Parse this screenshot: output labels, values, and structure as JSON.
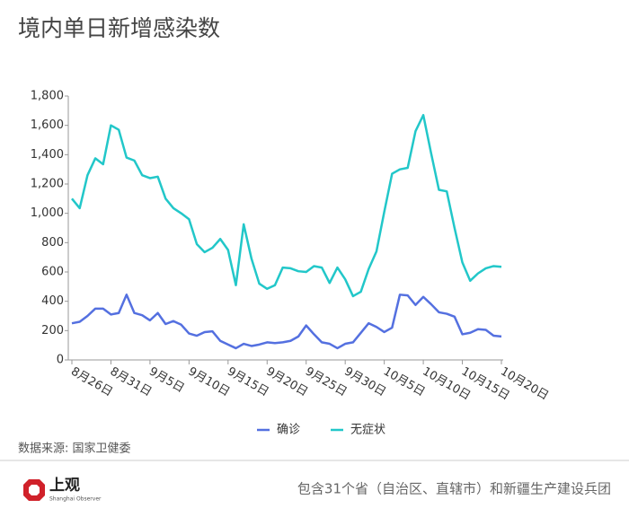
{
  "chart_data": {
    "type": "line",
    "title": "境内单日新增感染数",
    "categories": [
      "8月26日",
      null,
      null,
      null,
      null,
      "8月31日",
      null,
      null,
      null,
      null,
      "9月5日",
      null,
      null,
      null,
      null,
      "9月10日",
      null,
      null,
      null,
      null,
      "9月15日",
      null,
      null,
      null,
      null,
      "9月20日",
      null,
      null,
      null,
      null,
      "9月25日",
      null,
      null,
      null,
      null,
      "9月30日",
      null,
      null,
      null,
      null,
      "10月5日",
      null,
      null,
      null,
      null,
      "10月10日",
      null,
      null,
      null,
      null,
      "10月15日",
      null,
      null,
      null,
      null,
      "10月20日"
    ],
    "series": [
      {
        "name": "确诊",
        "color": "#5470e0",
        "values": [
          250,
          260,
          300,
          350,
          350,
          310,
          320,
          445,
          320,
          305,
          270,
          320,
          245,
          265,
          240,
          180,
          165,
          190,
          195,
          130,
          105,
          80,
          110,
          95,
          105,
          120,
          115,
          120,
          130,
          160,
          235,
          175,
          120,
          110,
          80,
          110,
          120,
          185,
          250,
          225,
          190,
          220,
          445,
          440,
          375,
          430,
          380,
          325,
          315,
          295,
          175,
          185,
          210,
          205,
          165,
          160
        ]
      },
      {
        "name": "无症状",
        "color": "#22c7c9",
        "values": [
          1100,
          1035,
          1260,
          1375,
          1335,
          1600,
          1570,
          1380,
          1360,
          1260,
          1240,
          1250,
          1100,
          1035,
          1000,
          960,
          790,
          735,
          765,
          825,
          750,
          510,
          925,
          690,
          520,
          485,
          510,
          630,
          625,
          605,
          600,
          640,
          630,
          525,
          630,
          550,
          435,
          465,
          620,
          740,
          1010,
          1270,
          1300,
          1310,
          1560,
          1670,
          1410,
          1160,
          1150,
          900,
          665,
          540,
          590,
          625,
          640,
          635
        ]
      }
    ],
    "ylim": [
      0,
      1800
    ],
    "yticks": [
      0,
      200,
      400,
      600,
      800,
      {
        "value": 1000,
        "label": "1,000"
      },
      {
        "value": 1200,
        "label": "1,200"
      },
      {
        "value": 1400,
        "label": "1,400"
      },
      {
        "value": 1600,
        "label": "1,600"
      },
      {
        "value": 1800,
        "label": "1,800"
      }
    ],
    "grid": false,
    "legend": "bottom",
    "source": "数据来源: 国家卫健委",
    "logo": "上观",
    "logo_subtitle": "Shanghai Observer",
    "note": "包含31个省（自治区、直辖市）和新疆生产建设兵团"
  }
}
